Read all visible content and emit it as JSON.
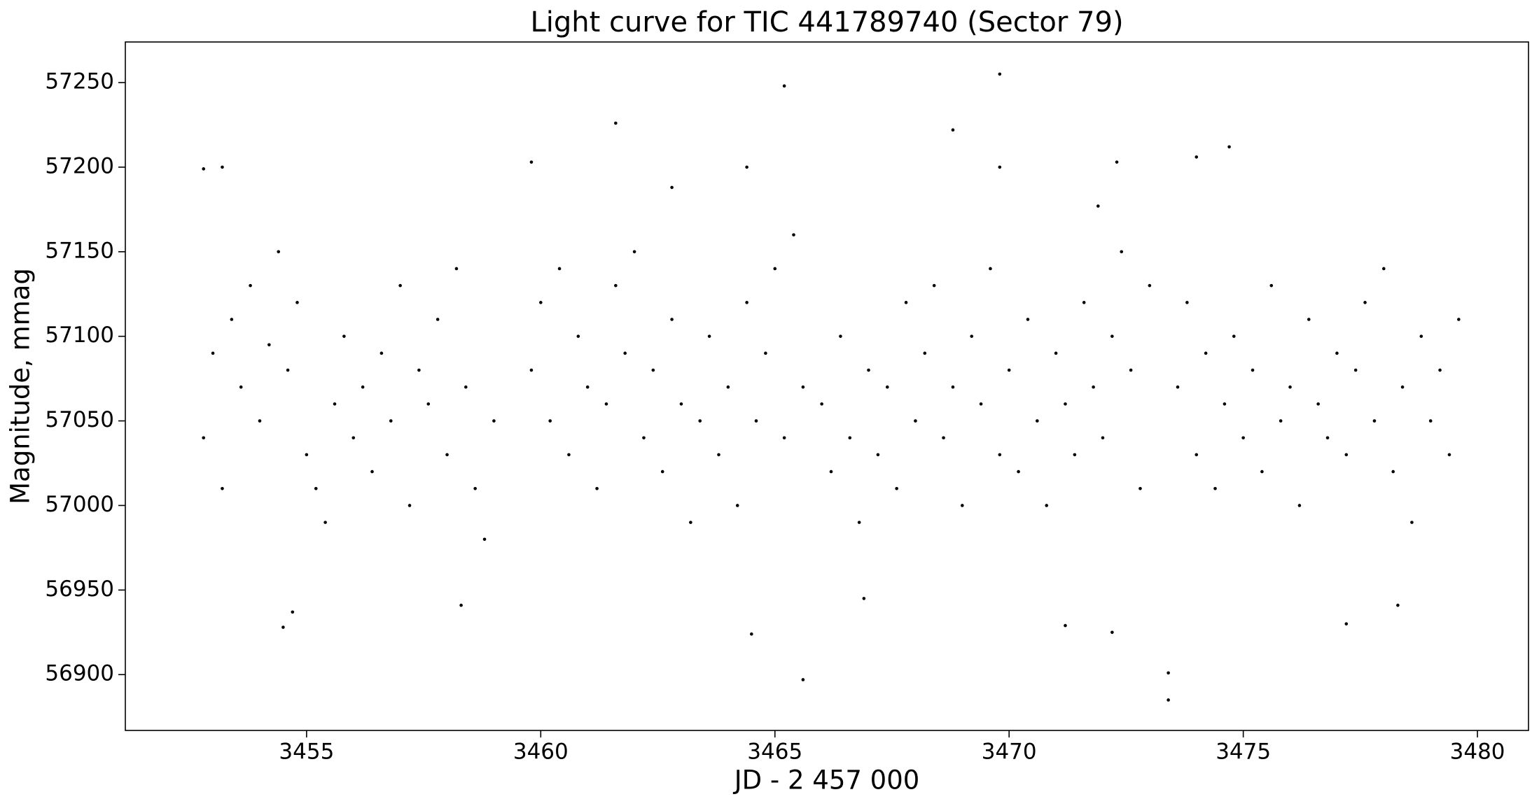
{
  "chart_data": {
    "type": "scatter",
    "title": "Light curve for TIC 441789740 (Sector 79)",
    "x_label": "JD - 2 457 000",
    "y_label": "Magnitude, mmag",
    "color": "#000000",
    "xlim": [
      3451.13,
      3481.09
    ],
    "ylim": [
      56867,
      57274
    ],
    "xticks": [
      3455,
      3460,
      3465,
      3470,
      3475,
      3480
    ],
    "yticks": [
      56900,
      56950,
      57000,
      57050,
      57100,
      57150,
      57200,
      57250
    ],
    "x": [
      3452.8,
      3453.0,
      3453.2,
      3453.4,
      3453.6,
      3453.8,
      3454.0,
      3454.2,
      3454.4,
      3454.6,
      3454.8,
      3455.0,
      3455.2,
      3455.4,
      3455.6,
      3455.8,
      3456.0,
      3456.2,
      3456.4,
      3456.6,
      3456.8,
      3457.0,
      3457.2,
      3457.4,
      3457.6,
      3457.8,
      3458.0,
      3458.2,
      3458.4,
      3458.6,
      3458.8,
      3459.0,
      3459.8,
      3460.0,
      3460.2,
      3460.4,
      3460.6,
      3460.8,
      3461.0,
      3461.2,
      3461.4,
      3461.6,
      3461.8,
      3462.0,
      3462.2,
      3462.4,
      3462.6,
      3462.8,
      3463.0,
      3463.2,
      3463.4,
      3463.6,
      3463.8,
      3464.0,
      3464.2,
      3464.4,
      3464.6,
      3464.8,
      3465.0,
      3465.2,
      3465.4,
      3465.6,
      3466.0,
      3466.2,
      3466.4,
      3466.6,
      3466.8,
      3467.0,
      3467.2,
      3467.4,
      3467.6,
      3467.8,
      3468.0,
      3468.2,
      3468.4,
      3468.6,
      3468.8,
      3469.0,
      3469.2,
      3469.4,
      3469.6,
      3469.8,
      3470.0,
      3470.2,
      3470.4,
      3470.6,
      3470.8,
      3471.0,
      3471.2,
      3471.4,
      3471.6,
      3471.8,
      3472.0,
      3472.2,
      3472.4,
      3472.6,
      3472.8,
      3473.0,
      3473.6,
      3473.8,
      3474.0,
      3474.2,
      3474.4,
      3474.6,
      3474.8,
      3475.0,
      3475.2,
      3475.4,
      3475.6,
      3475.8,
      3476.0,
      3476.2,
      3476.4,
      3476.6,
      3476.8,
      3477.0,
      3477.2,
      3477.4,
      3477.6,
      3477.8,
      3478.0,
      3478.2,
      3478.4,
      3478.6,
      3478.8,
      3479.0,
      3479.2,
      3479.4,
      3479.6,
      3452.8,
      3453.2,
      3454.5,
      3454.7,
      3459.8,
      3461.6,
      3462.8,
      3464.4,
      3464.5,
      3465.2,
      3465.6,
      3468.8,
      3469.8,
      3469.8,
      3471.2,
      3472.2,
      3472.3,
      3473.4,
      3473.4,
      3474.0,
      3474.7,
      3477.2,
      3478.3,
      3471.9,
      3466.9,
      3458.3
    ],
    "values": [
      57040,
      57090,
      57010,
      57110,
      57070,
      57130,
      57050,
      57095,
      57150,
      57080,
      57120,
      57030,
      57010,
      56990,
      57060,
      57100,
      57040,
      57070,
      57020,
      57090,
      57050,
      57130,
      57000,
      57080,
      57060,
      57110,
      57030,
      57140,
      57070,
      57010,
      56980,
      57050,
      57080,
      57120,
      57050,
      57140,
      57030,
      57100,
      57070,
      57010,
      57060,
      57130,
      57090,
      57150,
      57040,
      57080,
      57020,
      57110,
      57060,
      56990,
      57050,
      57100,
      57030,
      57070,
      57000,
      57120,
      57050,
      57090,
      57140,
      57040,
      57160,
      57070,
      57060,
      57020,
      57100,
      57040,
      56990,
      57080,
      57030,
      57070,
      57010,
      57120,
      57050,
      57090,
      57130,
      57040,
      57070,
      57000,
      57100,
      57060,
      57140,
      57030,
      57080,
      57020,
      57110,
      57050,
      57000,
      57090,
      57060,
      57030,
      57120,
      57070,
      57040,
      57100,
      57150,
      57080,
      57010,
      57130,
      57070,
      57120,
      57030,
      57090,
      57010,
      57060,
      57100,
      57040,
      57080,
      57020,
      57130,
      57050,
      57070,
      57000,
      57110,
      57060,
      57040,
      57090,
      57030,
      57080,
      57120,
      57050,
      57140,
      57020,
      57070,
      56990,
      57100,
      57050,
      57080,
      57030,
      57110,
      57199,
      57200,
      56928,
      56937,
      57203,
      57226,
      57188,
      57200,
      56924,
      57248,
      56897,
      57222,
      57255,
      57200,
      56929,
      56925,
      57203,
      56901,
      56885,
      57206,
      57212,
      56930,
      56941,
      57177,
      56945,
      56941
    ]
  }
}
